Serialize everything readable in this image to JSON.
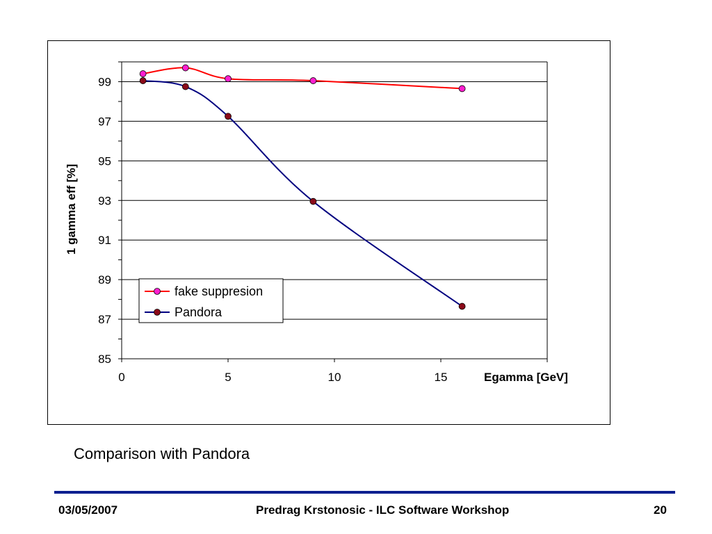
{
  "caption": "Comparison with Pandora",
  "footer": {
    "date": "03/05/2007",
    "center": "Predrag Krstonosic - ILC Software Workshop",
    "page": "20"
  },
  "chart_data": {
    "type": "line",
    "title": "",
    "xlabel": "Egamma [GeV]",
    "ylabel": "1 gamma eff [%]",
    "xlim": [
      0,
      20
    ],
    "ylim": [
      85,
      100
    ],
    "xticks": [
      0,
      5,
      10,
      15
    ],
    "yticks": [
      85,
      87,
      89,
      91,
      93,
      95,
      97,
      99
    ],
    "grid": "horizontal-major",
    "legend": "lower-left",
    "series": [
      {
        "name": "fake suppresion",
        "color": "#ff0000",
        "marker_color": "#ff1fcf",
        "x": [
          1,
          3,
          5,
          9,
          16
        ],
        "y": [
          99.4,
          99.7,
          99.15,
          99.05,
          98.65
        ]
      },
      {
        "name": "Pandora",
        "color": "#000080",
        "marker_color": "#8b0a1a",
        "x": [
          1,
          3,
          5,
          9,
          16
        ],
        "y": [
          99.05,
          98.75,
          97.25,
          92.95,
          87.65
        ]
      }
    ]
  }
}
